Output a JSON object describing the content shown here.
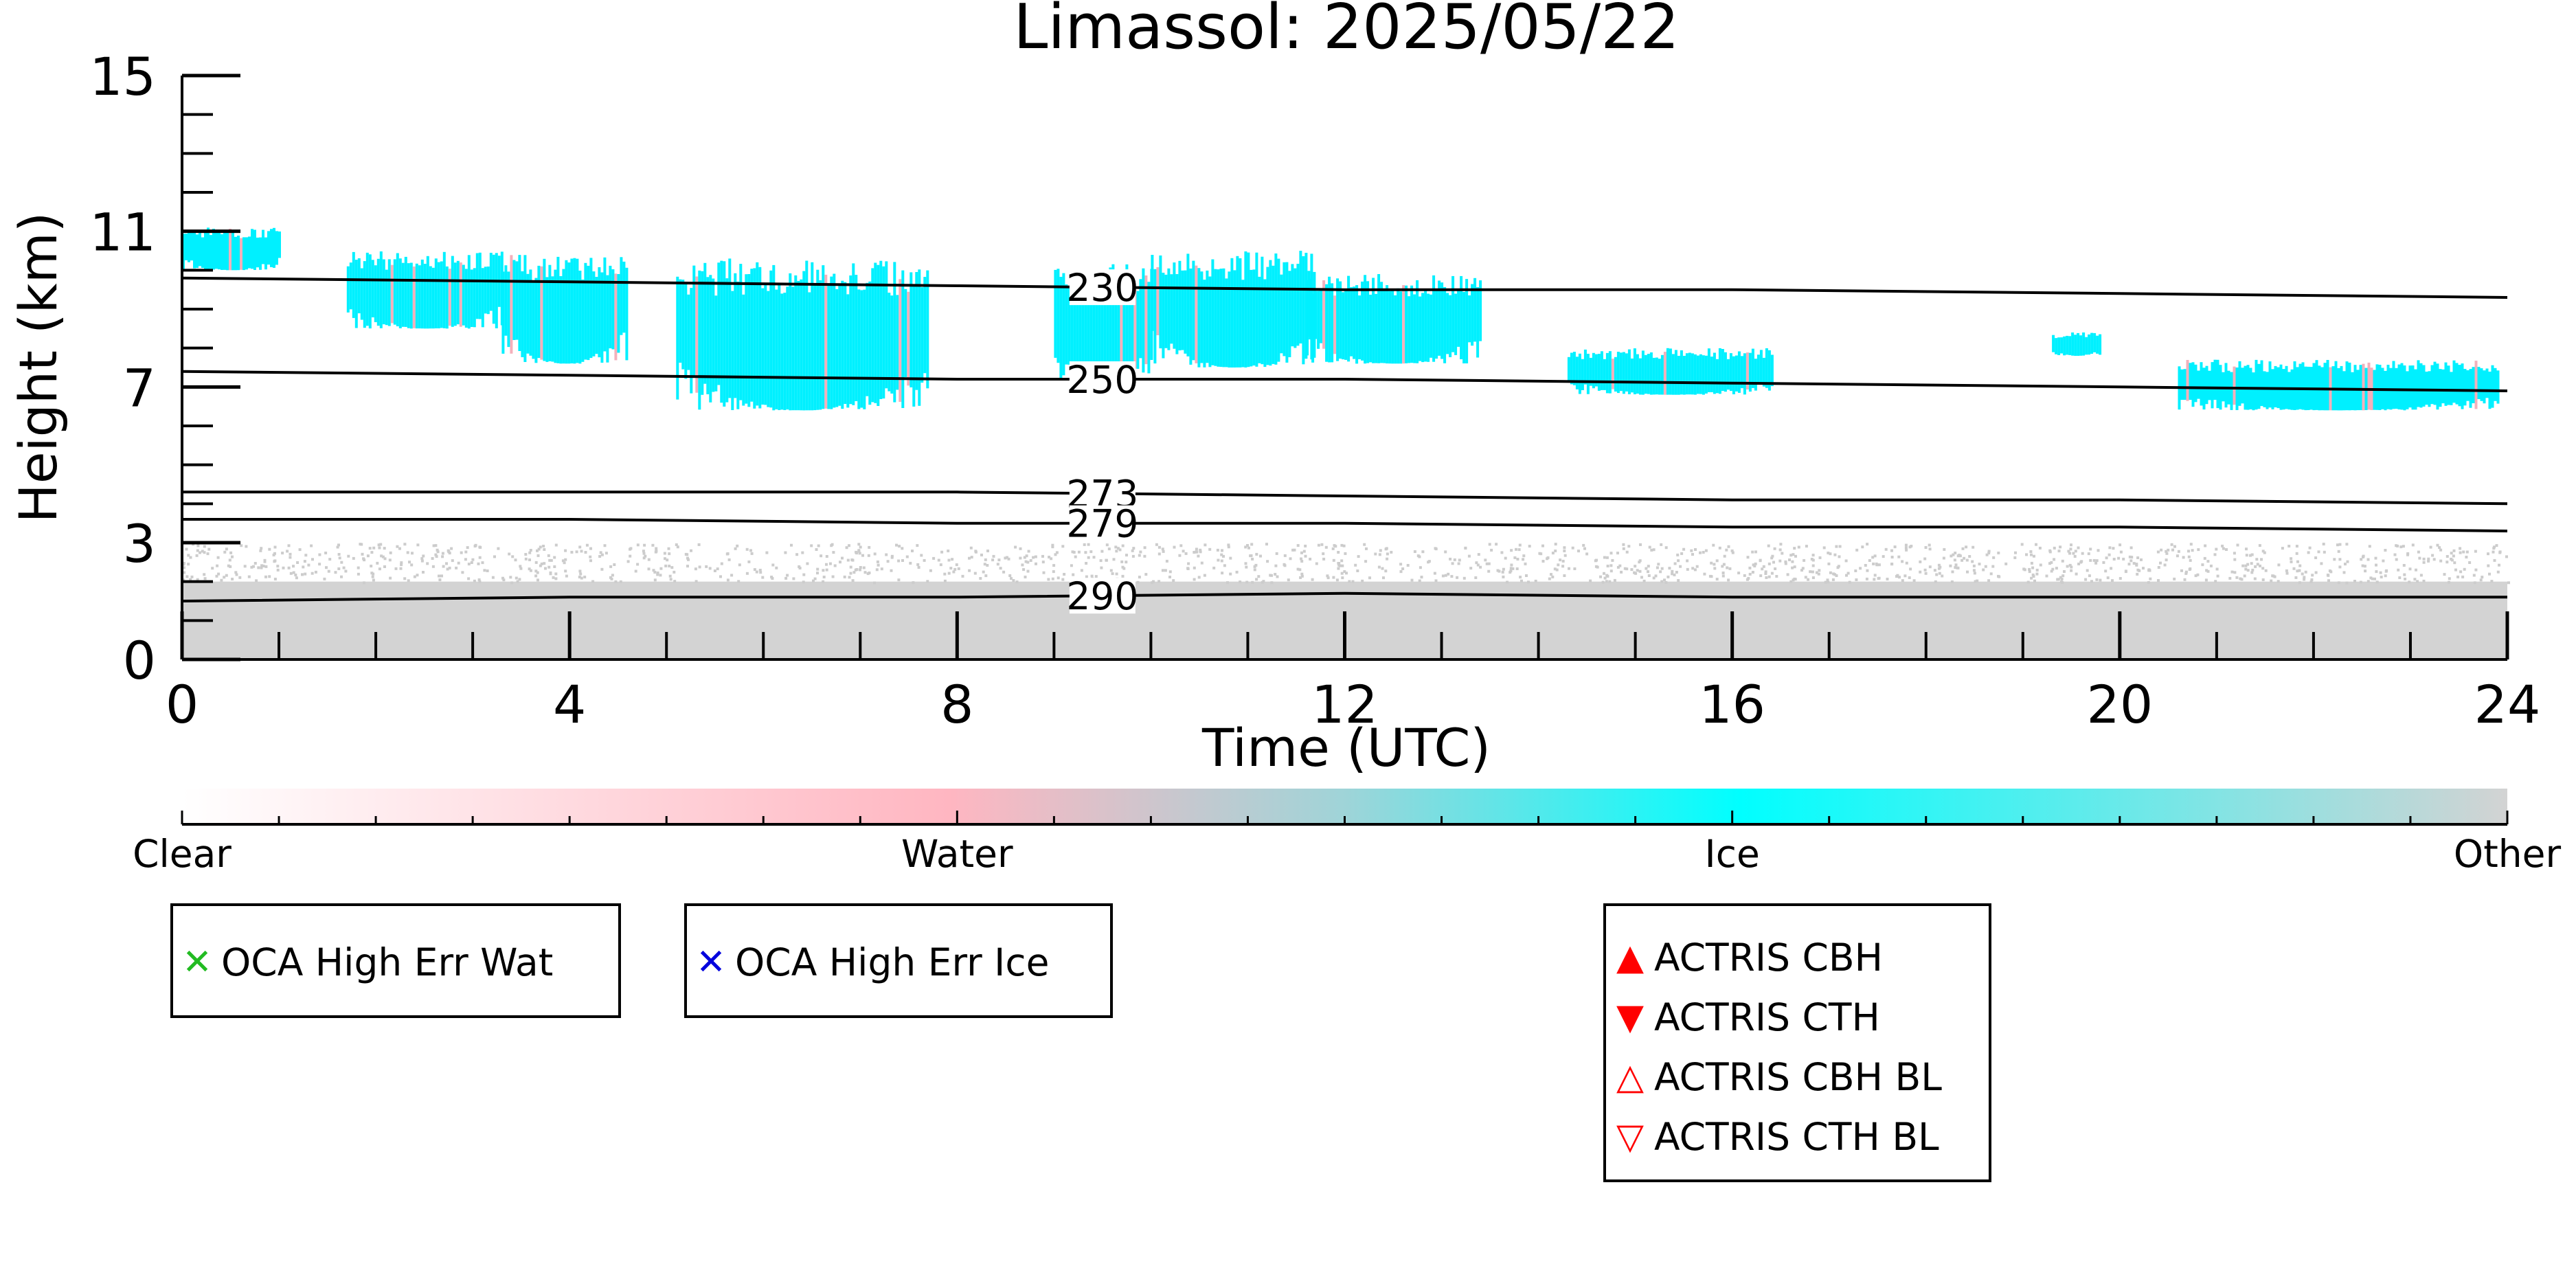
{
  "chart_data": {
    "type": "heatmap",
    "title": "Limassol: 2025/05/22",
    "xlabel": "Time (UTC)",
    "ylabel": "Height (km)",
    "xlim": [
      0,
      24
    ],
    "ylim": [
      0,
      15
    ],
    "x_ticks": [
      "0",
      "4",
      "8",
      "12",
      "16",
      "20",
      "24"
    ],
    "y_ticks": [
      "0",
      "3",
      "7",
      "11",
      "15"
    ],
    "colorbar": {
      "labels": [
        "Clear",
        "Water",
        "Ice",
        "Other"
      ],
      "colors": [
        "#ffffff",
        "#ffb6c1",
        "#00ffff",
        "#d3d3d3"
      ]
    },
    "isotherms": [
      {
        "label": "230",
        "heights": [
          [
            0,
            9.8
          ],
          [
            4,
            9.7
          ],
          [
            8,
            9.6
          ],
          [
            12,
            9.5
          ],
          [
            16,
            9.5
          ],
          [
            20,
            9.4
          ],
          [
            24,
            9.3
          ]
        ]
      },
      {
        "label": "250",
        "heights": [
          [
            0,
            7.4
          ],
          [
            4,
            7.3
          ],
          [
            8,
            7.2
          ],
          [
            12,
            7.2
          ],
          [
            16,
            7.1
          ],
          [
            20,
            7.0
          ],
          [
            24,
            6.9
          ]
        ]
      },
      {
        "label": "273",
        "heights": [
          [
            0,
            4.3
          ],
          [
            4,
            4.3
          ],
          [
            8,
            4.3
          ],
          [
            12,
            4.2
          ],
          [
            16,
            4.1
          ],
          [
            20,
            4.1
          ],
          [
            24,
            4.0
          ]
        ]
      },
      {
        "label": "279",
        "heights": [
          [
            0,
            3.6
          ],
          [
            4,
            3.6
          ],
          [
            8,
            3.5
          ],
          [
            12,
            3.5
          ],
          [
            16,
            3.4
          ],
          [
            20,
            3.4
          ],
          [
            24,
            3.3
          ]
        ]
      },
      {
        "label": "290",
        "heights": [
          [
            0,
            1.5
          ],
          [
            4,
            1.6
          ],
          [
            8,
            1.6
          ],
          [
            12,
            1.7
          ],
          [
            16,
            1.6
          ],
          [
            20,
            1.6
          ],
          [
            24,
            1.6
          ]
        ]
      }
    ],
    "ice_clouds": [
      {
        "t0": 0.0,
        "t1": 1.0,
        "top": 11.1,
        "base": 10.0
      },
      {
        "t0": 1.7,
        "t1": 3.3,
        "top": 10.5,
        "base": 8.5
      },
      {
        "t0": 3.3,
        "t1": 4.6,
        "top": 10.4,
        "base": 7.6
      },
      {
        "t0": 5.1,
        "t1": 7.7,
        "top": 10.3,
        "base": 6.4
      },
      {
        "t0": 9.0,
        "t1": 10.0,
        "top": 10.2,
        "base": 7.2
      },
      {
        "t0": 10.0,
        "t1": 11.7,
        "top": 10.5,
        "base": 7.5
      },
      {
        "t0": 11.6,
        "t1": 13.4,
        "top": 9.9,
        "base": 7.6
      },
      {
        "t0": 14.3,
        "t1": 16.4,
        "top": 8.0,
        "base": 6.8
      },
      {
        "t0": 19.3,
        "t1": 19.8,
        "top": 8.4,
        "base": 7.8
      },
      {
        "t0": 20.6,
        "t1": 23.9,
        "top": 7.7,
        "base": 6.4
      }
    ],
    "other_layer": {
      "top": 2.0,
      "diffuse_top": 3.0
    }
  },
  "legends": {
    "oca_wat": {
      "label": "OCA High Err Wat",
      "symbol": "✕",
      "color": "#22bb22"
    },
    "oca_ice": {
      "label": "OCA High Err Ice",
      "symbol": "✕",
      "color": "#0000dd"
    },
    "actris": [
      {
        "label": "ACTRIS CBH",
        "symbol": "▲",
        "color": "#ff0000"
      },
      {
        "label": "ACTRIS CTH",
        "symbol": "▼",
        "color": "#ff0000"
      },
      {
        "label": "ACTRIS CBH BL",
        "symbol": "△",
        "color": "#ff0000"
      },
      {
        "label": "ACTRIS CTH BL",
        "symbol": "▽",
        "color": "#ff0000"
      }
    ]
  }
}
